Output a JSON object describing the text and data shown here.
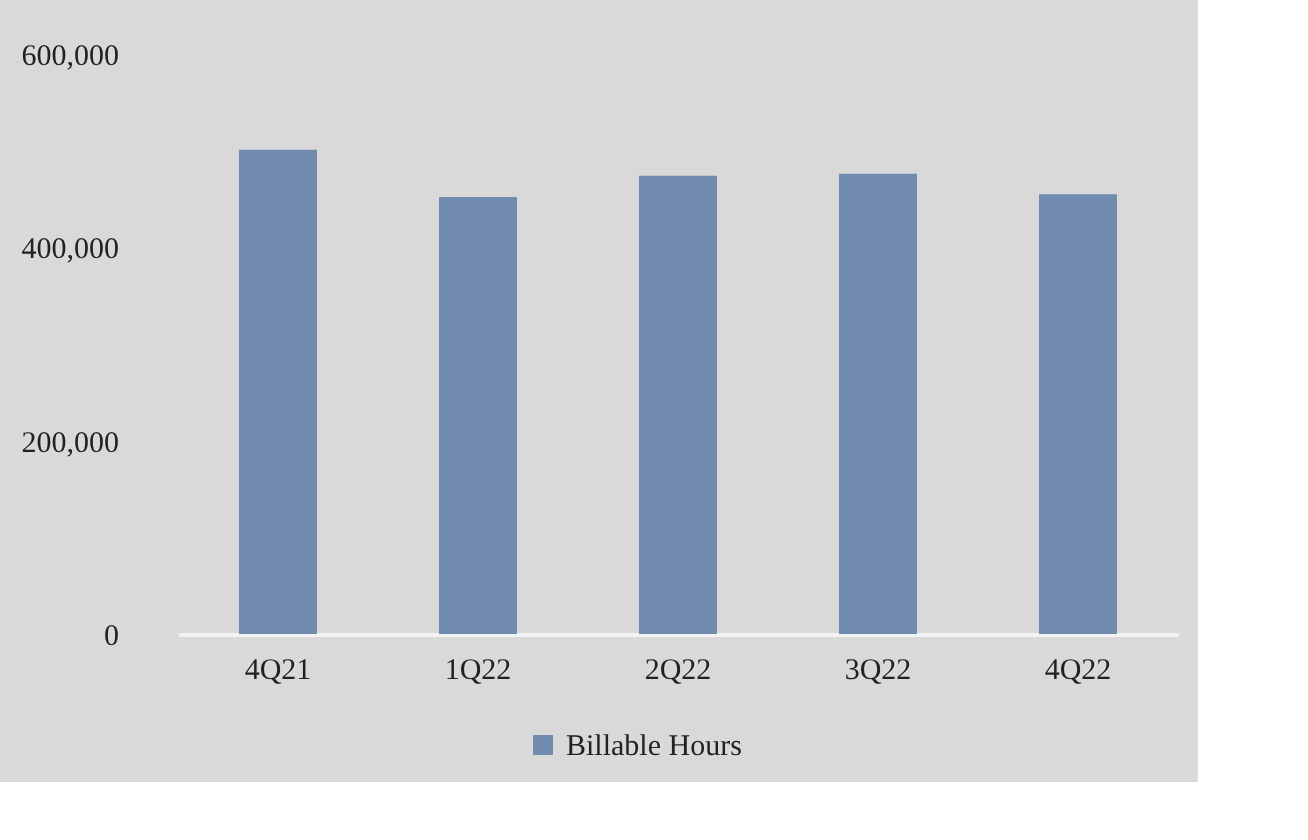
{
  "chart_data": {
    "type": "bar",
    "categories": [
      "4Q21",
      "1Q22",
      "2Q22",
      "3Q22",
      "4Q22"
    ],
    "series": [
      {
        "name": "Billable Hours",
        "color": "#718bb0",
        "values": [
          501000,
          452000,
          474000,
          476000,
          455000
        ]
      }
    ],
    "ylim": [
      0,
      600000
    ],
    "yticks": [
      {
        "value": 0,
        "label": "0"
      },
      {
        "value": 200000,
        "label": "200,000"
      },
      {
        "value": 400000,
        "label": "400,000"
      },
      {
        "value": 600000,
        "label": "600,000"
      }
    ],
    "legend": "bottom"
  }
}
